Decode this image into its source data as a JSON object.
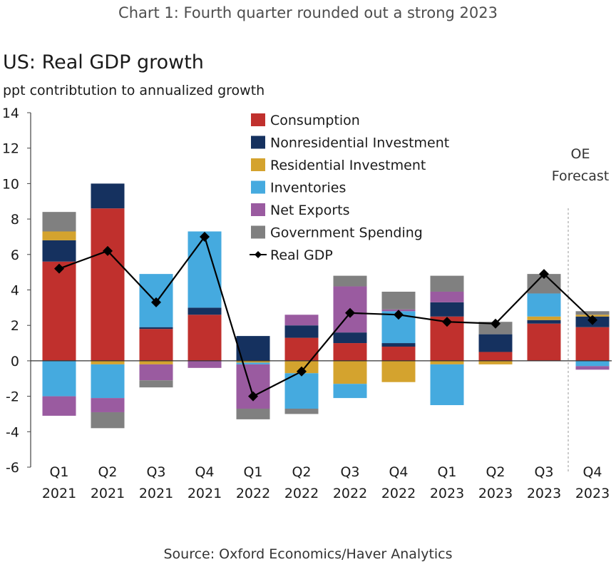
{
  "header": {
    "banner": "Chart 1: Fourth quarter rounded out a strong 2023",
    "title": "US: Real GDP growth",
    "subtitle": "ppt contribtution to annualized growth"
  },
  "footer": {
    "source": "Source: Oxford Economics/Haver Analytics"
  },
  "chart_data": {
    "type": "bar",
    "stacked": true,
    "title": "US: Real GDP growth",
    "ylabel": "ppt contribtution to annualized growth",
    "ylim": [
      -6,
      14
    ],
    "yticks": [
      -6,
      -4,
      -2,
      0,
      2,
      4,
      6,
      8,
      10,
      12,
      14
    ],
    "categories": [
      [
        "Q1",
        "2021"
      ],
      [
        "Q2",
        "2021"
      ],
      [
        "Q3",
        "2021"
      ],
      [
        "Q4",
        "2021"
      ],
      [
        "Q1",
        "2022"
      ],
      [
        "Q2",
        "2022"
      ],
      [
        "Q3",
        "2022"
      ],
      [
        "Q4",
        "2022"
      ],
      [
        "Q1",
        "2023"
      ],
      [
        "Q2",
        "2023"
      ],
      [
        "Q3",
        "2023"
      ],
      [
        "Q4",
        "2023"
      ]
    ],
    "forecast_label": [
      "OE",
      "Forecast"
    ],
    "series": [
      {
        "name": "Consumption",
        "color": "#c0302d",
        "values": [
          5.6,
          8.6,
          1.8,
          2.6,
          0.0,
          1.3,
          1.0,
          0.8,
          2.5,
          0.5,
          2.1,
          1.9
        ]
      },
      {
        "name": "Nonresidential Investment",
        "color": "#15315f",
        "values": [
          1.2,
          1.4,
          0.1,
          0.4,
          1.4,
          0.7,
          0.6,
          0.2,
          0.8,
          1.0,
          0.2,
          0.6
        ]
      },
      {
        "name": "Residential Investment",
        "color": "#d4a32e",
        "values": [
          0.5,
          -0.2,
          -0.2,
          0.0,
          -0.1,
          -0.7,
          -1.3,
          -1.2,
          -0.2,
          -0.2,
          0.2,
          0.1
        ]
      },
      {
        "name": "Inventories",
        "color": "#45aadf",
        "values": [
          -2.0,
          -1.9,
          3.0,
          4.3,
          -0.1,
          -2.0,
          -0.8,
          1.8,
          -2.3,
          0.0,
          1.3,
          -0.3
        ]
      },
      {
        "name": "Net Exports",
        "color": "#9a5ba0",
        "values": [
          -1.1,
          -0.8,
          -0.9,
          -0.4,
          -2.5,
          0.6,
          2.6,
          0.1,
          0.6,
          0.0,
          0.0,
          -0.2
        ]
      },
      {
        "name": "Government Spending",
        "color": "#808080",
        "values": [
          1.1,
          -0.9,
          -0.4,
          0.0,
          -0.6,
          -0.3,
          0.6,
          1.0,
          0.9,
          0.7,
          1.1,
          0.2
        ]
      }
    ],
    "line": {
      "name": "Real GDP",
      "color": "#000000",
      "values": [
        5.2,
        6.2,
        3.3,
        7.0,
        -2.0,
        -0.6,
        2.7,
        2.6,
        2.2,
        2.1,
        4.9,
        2.3
      ]
    }
  }
}
